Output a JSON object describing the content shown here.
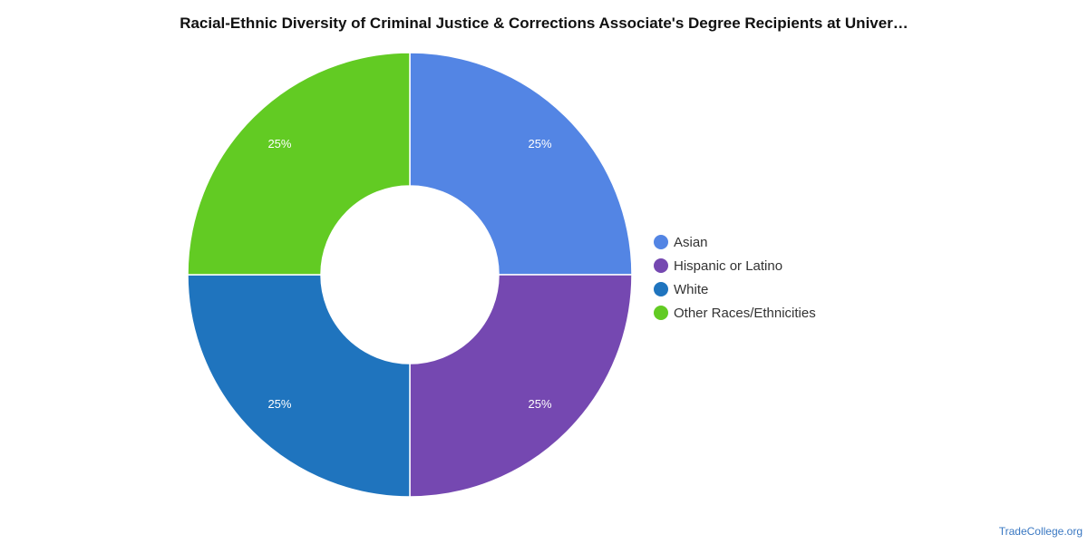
{
  "chart_data": {
    "type": "pie",
    "title": "Racial-Ethnic Diversity of Criminal Justice & Corrections Associate's Degree Recipients at Univer…",
    "donut": true,
    "legend_position": "right",
    "slices": [
      {
        "label": "Asian",
        "value": 25,
        "display": "25%",
        "color": "#5385e4"
      },
      {
        "label": "Hispanic or Latino",
        "value": 25,
        "display": "25%",
        "color": "#7548b1"
      },
      {
        "label": "White",
        "value": 25,
        "display": "25%",
        "color": "#1f74be"
      },
      {
        "label": "Other Races/Ethnicities",
        "value": 25,
        "display": "25%",
        "color": "#62cb23"
      }
    ]
  },
  "credit": "TradeCollege.org"
}
